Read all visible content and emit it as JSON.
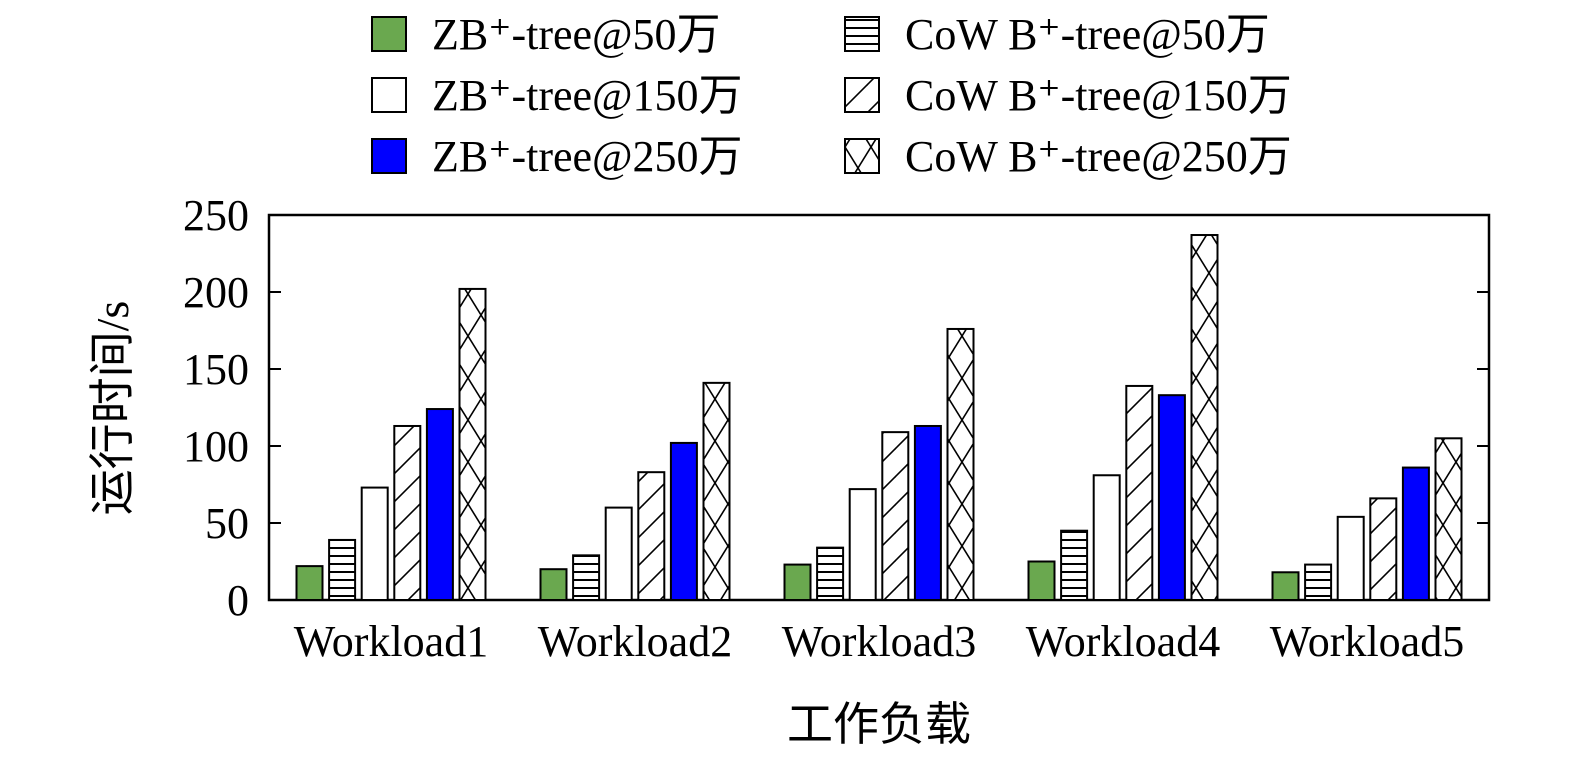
{
  "chart_data": {
    "type": "bar",
    "categories": [
      "Workload1",
      "Workload2",
      "Workload3",
      "Workload4",
      "Workload5"
    ],
    "xlabel": "工作负载",
    "ylabel": "运行时间/s",
    "ylim": [
      0,
      250
    ],
    "yticks": [
      0,
      50,
      100,
      150,
      200,
      250
    ],
    "grid": false,
    "legend_position": "top",
    "series": [
      {
        "name": "ZB⁺-tree@50万",
        "style": "solid",
        "color": "#6aa84f",
        "values": [
          22,
          20,
          23,
          25,
          18
        ]
      },
      {
        "name": "CoW B⁺-tree@50万",
        "style": "hlines",
        "color": "#ffffff",
        "values": [
          39,
          29,
          34,
          45,
          23
        ]
      },
      {
        "name": "ZB⁺-tree@150万",
        "style": "solid",
        "color": "#ffffff",
        "values": [
          73,
          60,
          72,
          81,
          54
        ]
      },
      {
        "name": "CoW B⁺-tree@150万",
        "style": "diagonal",
        "color": "#ffffff",
        "values": [
          113,
          83,
          109,
          139,
          66
        ]
      },
      {
        "name": "ZB⁺-tree@250万",
        "style": "solid",
        "color": "#0000ff",
        "values": [
          124,
          102,
          113,
          133,
          86
        ]
      },
      {
        "name": "CoW B⁺-tree@250万",
        "style": "crosshatch",
        "color": "#ffffff",
        "values": [
          202,
          141,
          176,
          237,
          105
        ]
      }
    ]
  }
}
